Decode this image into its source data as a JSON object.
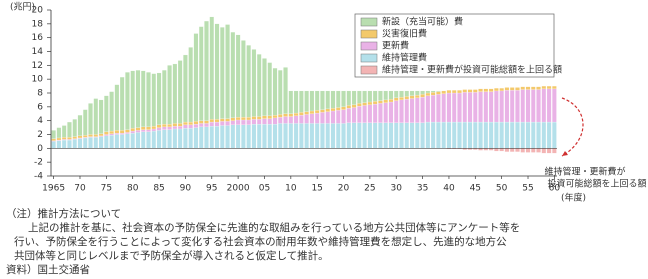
{
  "chart_data": {
    "type": "bar",
    "stacked": true,
    "y_label": "(兆円)",
    "x_label": "(年度)",
    "annotation": [
      "維持管理・更新費が",
      "投資可能総額を上回る額"
    ],
    "ylim": [
      -4,
      20
    ],
    "yticks": [
      -4,
      -2,
      0,
      2,
      4,
      6,
      8,
      10,
      12,
      14,
      16,
      18,
      20
    ],
    "categories": [
      "1965",
      null,
      null,
      null,
      null,
      "70",
      null,
      null,
      null,
      null,
      "75",
      null,
      null,
      null,
      null,
      "80",
      null,
      null,
      null,
      null,
      "85",
      null,
      null,
      null,
      null,
      "90",
      null,
      null,
      null,
      null,
      "95",
      null,
      null,
      null,
      null,
      "2000",
      null,
      null,
      null,
      null,
      "05",
      null,
      null,
      null,
      null,
      "10",
      null,
      null,
      null,
      null,
      "15",
      null,
      null,
      null,
      null,
      "20",
      null,
      null,
      null,
      null,
      "25",
      null,
      null,
      null,
      null,
      "30",
      null,
      null,
      null,
      null,
      "35",
      null,
      null,
      null,
      null,
      "40",
      null,
      null,
      null,
      null,
      "45",
      null,
      null,
      null,
      null,
      "50",
      null,
      null,
      null,
      null,
      "55",
      null,
      null,
      null,
      null,
      "60"
    ],
    "series": [
      {
        "name": "新設（充当可能）費",
        "color": "#b9deb0",
        "values": [
          1.2,
          1.5,
          1.7,
          2.2,
          2.5,
          3.0,
          3.7,
          4.5,
          5.2,
          4.9,
          5.2,
          5.7,
          6.6,
          7.7,
          8.3,
          8.3,
          8.3,
          8.1,
          7.9,
          7.6,
          7.5,
          7.8,
          8.5,
          8.6,
          9.1,
          9.7,
          10.8,
          12.7,
          13.6,
          14.4,
          14.8,
          13.8,
          13.2,
          13.6,
          12.4,
          11.9,
          11.1,
          10.4,
          9.7,
          9.0,
          8.3,
          7.7,
          6.8,
          6.4,
          6.7,
          3.3,
          3.2,
          3.1,
          3.0,
          2.9,
          2.8,
          2.7,
          2.6,
          2.5,
          2.4,
          2.3,
          2.1,
          2.0,
          1.8,
          1.7,
          1.6,
          1.5,
          1.4,
          1.3,
          1.2,
          1.0,
          0.9,
          0.8,
          0.7,
          0.6,
          0.5,
          0.3,
          0.2,
          0.1,
          null,
          null,
          null,
          null,
          null,
          null,
          null,
          null,
          null,
          null,
          null,
          null,
          null,
          null,
          null,
          null,
          null,
          null,
          null,
          null,
          null,
          null
        ]
      },
      {
        "name": "災害復旧費",
        "color": "#f3c96b",
        "values": [
          0.3,
          0.3,
          0.3,
          0.3,
          0.3,
          0.3,
          0.3,
          0.3,
          0.3,
          0.3,
          0.4,
          0.4,
          0.4,
          0.4,
          0.4,
          0.4,
          0.4,
          0.4,
          0.4,
          0.4,
          0.4,
          0.4,
          0.4,
          0.4,
          0.4,
          0.4,
          0.4,
          0.4,
          0.4,
          0.4,
          0.4,
          0.4,
          0.4,
          0.4,
          0.4,
          0.4,
          0.4,
          0.4,
          0.4,
          0.4,
          0.4,
          0.4,
          0.4,
          0.4,
          0.4,
          0.4,
          0.4,
          0.4,
          0.4,
          0.4,
          0.4,
          0.4,
          0.4,
          0.4,
          0.4,
          0.4,
          0.4,
          0.4,
          0.4,
          0.4,
          0.4,
          0.4,
          0.4,
          0.4,
          0.4,
          0.4,
          0.4,
          0.4,
          0.4,
          0.4,
          0.4,
          0.4,
          0.4,
          0.4,
          0.4,
          0.4,
          0.4,
          0.4,
          0.4,
          0.4,
          0.4,
          0.4,
          0.4,
          0.4,
          0.4,
          0.4,
          0.4,
          0.4,
          0.4,
          0.4,
          0.4,
          0.4,
          0.4,
          0.4,
          0.4,
          0.4
        ]
      },
      {
        "name": "更新費",
        "color": "#e9b2e6",
        "values": [
          0.1,
          0.1,
          0.1,
          0.1,
          0.1,
          0.1,
          0.1,
          0.1,
          0.1,
          0.1,
          0.2,
          0.2,
          0.2,
          0.2,
          0.2,
          0.3,
          0.3,
          0.3,
          0.3,
          0.3,
          0.4,
          0.4,
          0.4,
          0.4,
          0.4,
          0.5,
          0.5,
          0.5,
          0.5,
          0.5,
          0.6,
          0.6,
          0.6,
          0.6,
          0.6,
          0.7,
          0.7,
          0.7,
          0.7,
          0.7,
          0.8,
          0.8,
          0.9,
          0.9,
          1.0,
          1.0,
          1.1,
          1.2,
          1.3,
          1.4,
          1.5,
          1.6,
          1.7,
          1.8,
          1.9,
          2.0,
          2.1,
          2.2,
          2.4,
          2.5,
          2.6,
          2.7,
          2.8,
          2.9,
          3.0,
          3.2,
          3.3,
          3.4,
          3.5,
          3.6,
          3.7,
          3.8,
          3.9,
          4.0,
          4.1,
          4.2,
          4.2,
          4.2,
          4.3,
          4.3,
          4.3,
          4.4,
          4.4,
          4.4,
          4.5,
          4.5,
          4.6,
          4.6,
          4.6,
          4.7,
          4.7,
          4.7,
          4.7,
          4.8,
          4.8,
          4.8
        ]
      },
      {
        "name": "維持管理費",
        "color": "#b4e0ea",
        "values": [
          1.0,
          1.1,
          1.2,
          1.2,
          1.3,
          1.4,
          1.5,
          1.6,
          1.6,
          1.7,
          1.8,
          1.9,
          2.0,
          2.0,
          2.1,
          2.2,
          2.3,
          2.4,
          2.4,
          2.5,
          2.6,
          2.7,
          2.7,
          2.8,
          2.8,
          2.9,
          2.9,
          3.0,
          3.1,
          3.1,
          3.2,
          3.2,
          3.3,
          3.3,
          3.4,
          3.4,
          3.4,
          3.4,
          3.5,
          3.5,
          3.5,
          3.5,
          3.5,
          3.6,
          3.6,
          3.6,
          3.6,
          3.6,
          3.6,
          3.6,
          3.6,
          3.6,
          3.6,
          3.6,
          3.6,
          3.6,
          3.7,
          3.7,
          3.7,
          3.7,
          3.7,
          3.7,
          3.7,
          3.7,
          3.7,
          3.7,
          3.7,
          3.7,
          3.7,
          3.7,
          3.7,
          3.8,
          3.8,
          3.8,
          3.8,
          3.8,
          3.8,
          3.8,
          3.8,
          3.8,
          3.8,
          3.8,
          3.8,
          3.8,
          3.8,
          3.8,
          3.8,
          3.8,
          3.8,
          3.8,
          3.8,
          3.8,
          3.8,
          3.8,
          3.8,
          3.8
        ]
      },
      {
        "name": "維持管理・更新費が投資可能総額を上回る額",
        "color": "#f3b4b4",
        "values": [
          null,
          null,
          null,
          null,
          null,
          null,
          null,
          null,
          null,
          null,
          null,
          null,
          null,
          null,
          null,
          null,
          null,
          null,
          null,
          null,
          null,
          null,
          null,
          null,
          null,
          null,
          null,
          null,
          null,
          null,
          null,
          null,
          null,
          null,
          null,
          null,
          null,
          null,
          null,
          null,
          null,
          null,
          null,
          null,
          null,
          null,
          null,
          null,
          null,
          null,
          null,
          null,
          null,
          null,
          null,
          null,
          null,
          null,
          null,
          null,
          null,
          null,
          null,
          null,
          null,
          null,
          null,
          null,
          null,
          null,
          null,
          null,
          null,
          null,
          null,
          -0.1,
          -0.1,
          -0.1,
          -0.2,
          -0.2,
          -0.2,
          -0.3,
          -0.3,
          -0.3,
          -0.4,
          -0.4,
          -0.5,
          -0.5,
          -0.5,
          -0.6,
          -0.6,
          -0.6,
          -0.6,
          -0.7,
          -0.7,
          -0.7
        ]
      }
    ]
  },
  "notes": {
    "heading": "（注）推計方法について",
    "lines": [
      "上記の推計を基に、社会資本の予防保全に先進的な取組みを行っている地方公共団体等にアンケート等を",
      "行い、予防保全を行うことによって変化する社会資本の耐用年数や維持管理費を想定し、先進的な地方公",
      "共団体等と同じレベルまで予防保全が導入されると仮定して推計。"
    ],
    "source": "資料）国土交通省"
  }
}
